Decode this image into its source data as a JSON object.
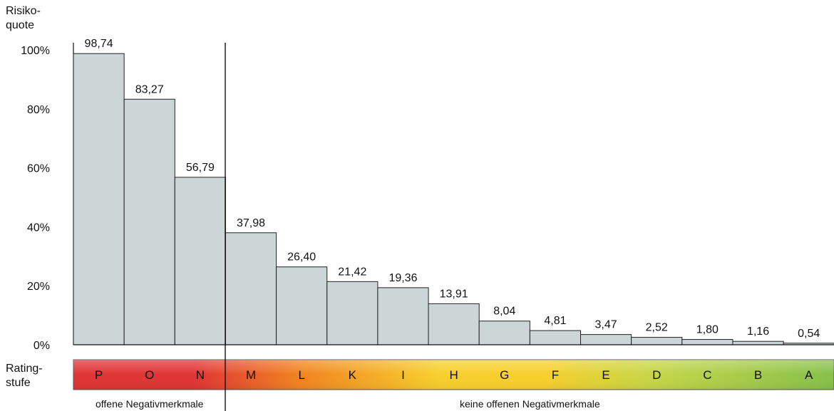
{
  "chart_data": {
    "type": "bar",
    "ylabel": "Risiko-\nquote",
    "yticks": [
      "0%",
      "20%",
      "40%",
      "60%",
      "80%",
      "100%"
    ],
    "ylim": [
      0,
      100
    ],
    "scale_label": "Rating-\nstufe",
    "categories": [
      "P",
      "O",
      "N",
      "M",
      "L",
      "K",
      "I",
      "H",
      "G",
      "F",
      "E",
      "D",
      "C",
      "B",
      "A"
    ],
    "values": [
      98.74,
      83.27,
      56.79,
      37.98,
      26.4,
      21.42,
      19.36,
      13.91,
      8.04,
      4.81,
      3.47,
      2.52,
      1.8,
      1.16,
      0.54
    ],
    "value_labels": [
      "98,74",
      "83,27",
      "56,79",
      "37,98",
      "26,40",
      "21,42",
      "19,36",
      "13,91",
      "8,04",
      "4,81",
      "3,47",
      "2,52",
      "1,80",
      "1,16",
      "0,54"
    ],
    "groups": [
      {
        "label": "offene Negativmerkmale",
        "count": 3
      },
      {
        "label": "keine offenen Negativmerkmale",
        "count": 12
      }
    ],
    "bar_color": "#ccd6d6",
    "scale_colors": [
      "#e03434",
      "#f2841f",
      "#f7cf2c",
      "#c6d646",
      "#86c04a"
    ]
  }
}
